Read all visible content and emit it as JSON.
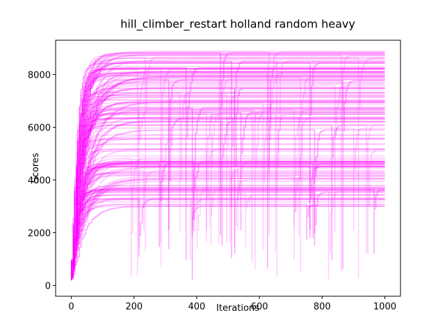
{
  "chart_data": {
    "type": "line",
    "title": "hill_climber_restart holland random heavy",
    "xlabel": "Iterations",
    "ylabel": "Scores",
    "xlim": [
      -50,
      1050
    ],
    "ylim": [
      -410,
      9300
    ],
    "x_ticks": [
      0,
      200,
      400,
      600,
      800,
      1000
    ],
    "y_ticks": [
      0,
      2000,
      4000,
      6000,
      8000
    ],
    "grid": false,
    "line_color": "#ff00ff",
    "line_opacity": 0.2,
    "series_count": 200,
    "score_band": {
      "start_min": 200,
      "start_max": 800,
      "final_min": 2600,
      "final_max": 8900,
      "x_max": 1000
    }
  }
}
